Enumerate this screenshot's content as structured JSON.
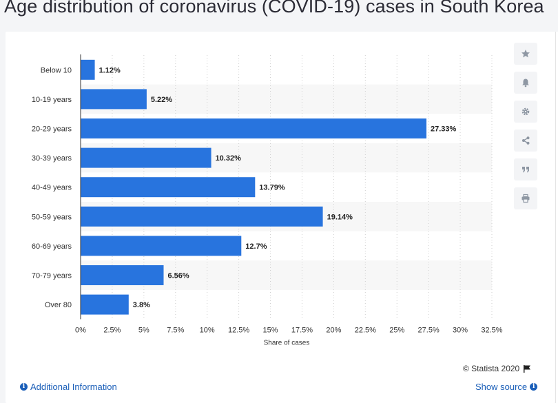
{
  "page": {
    "title": "Age distribution of coronavirus (COVID-19) cases in South Korea"
  },
  "chart_data": {
    "type": "bar",
    "orientation": "horizontal",
    "categories": [
      "Below 10",
      "10-19 years",
      "20-29 years",
      "30-39 years",
      "40-49 years",
      "50-59 years",
      "60-69 years",
      "70-79 years",
      "Over 80"
    ],
    "values": [
      1.12,
      5.22,
      27.33,
      10.32,
      13.79,
      19.14,
      12.7,
      6.56,
      3.8
    ],
    "value_labels": [
      "1.12%",
      "5.22%",
      "27.33%",
      "10.32%",
      "13.79%",
      "19.14%",
      "12.7%",
      "6.56%",
      "3.8%"
    ],
    "title": "",
    "xlabel": "Share of cases",
    "ylabel": "",
    "xlim": [
      0,
      32.5
    ],
    "xticks": [
      0,
      2.5,
      5,
      7.5,
      10,
      12.5,
      15,
      17.5,
      20,
      22.5,
      25,
      27.5,
      30,
      32.5
    ],
    "xtick_labels": [
      "0%",
      "2.5%",
      "5%",
      "7.5%",
      "10%",
      "12.5%",
      "15%",
      "17.5%",
      "20%",
      "22.5%",
      "25%",
      "27.5%",
      "30%",
      "32.5%"
    ],
    "bar_color": "#2874de",
    "stripe_color": "#f7f7f7",
    "grid": "vertical-dotted",
    "legend": "none"
  },
  "tools": {
    "items": [
      {
        "name": "star-icon"
      },
      {
        "name": "bell-icon"
      },
      {
        "name": "gear-icon"
      },
      {
        "name": "share-icon"
      },
      {
        "name": "quote-icon"
      },
      {
        "name": "print-icon"
      }
    ]
  },
  "footer": {
    "copyright": "© Statista 2020",
    "additional_info": "Additional Information",
    "show_source": "Show source"
  },
  "colors": {
    "link": "#1a5eb8",
    "title": "#2b2b35"
  }
}
